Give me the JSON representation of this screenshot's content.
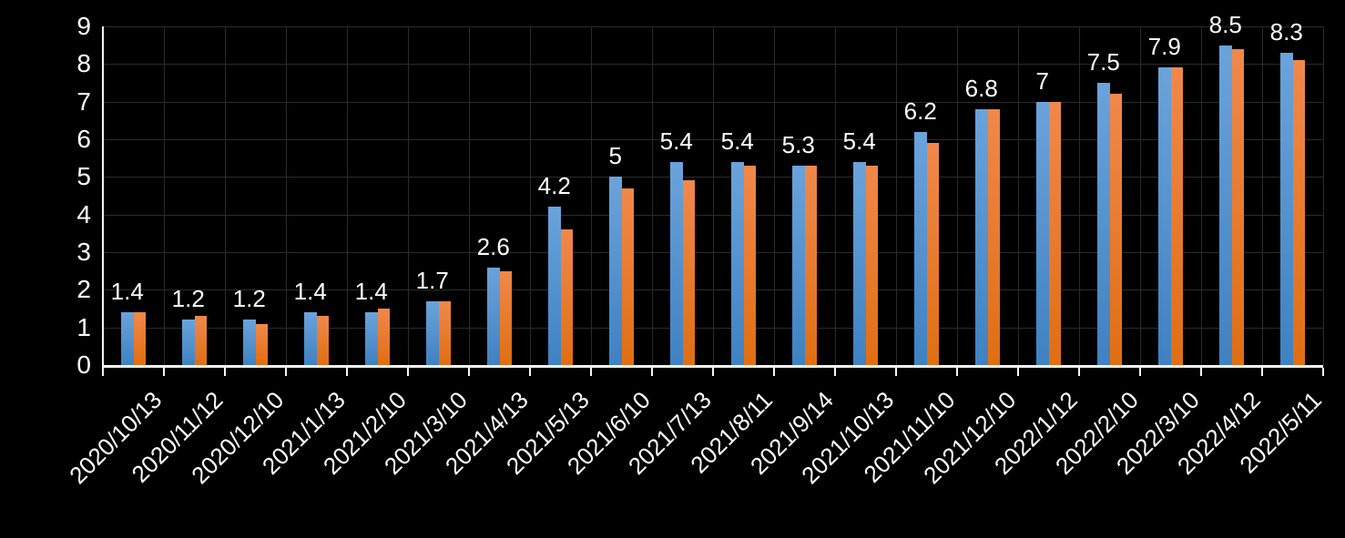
{
  "chart_data": {
    "type": "bar",
    "title": "",
    "legend": false,
    "grid": true,
    "background_color": "#000000",
    "gridline_color": "#2b2b2b",
    "axis_color": "#f5f5f5",
    "text_color": "#ffffff",
    "categories": [
      "2020/10/13",
      "2020/11/12",
      "2020/12/10",
      "2021/1/13",
      "2021/2/10",
      "2021/3/10",
      "2021/4/13",
      "2021/5/13",
      "2021/6/10",
      "2021/7/13",
      "2021/8/11",
      "2021/9/14",
      "2021/10/13",
      "2021/11/10",
      "2021/12/10",
      "2022/1/12",
      "2022/2/10",
      "2022/3/10",
      "2022/4/12",
      "2022/5/11"
    ],
    "series": [
      {
        "name": "series-1-blue",
        "color_top": "#6ba3db",
        "color_bottom": "#3f81c2",
        "values": [
          1.4,
          1.2,
          1.2,
          1.4,
          1.4,
          1.7,
          2.6,
          4.2,
          5,
          5.4,
          5.4,
          5.3,
          5.4,
          6.2,
          6.8,
          7,
          7.5,
          7.9,
          8.5,
          8.3
        ],
        "data_labels": [
          "1.4",
          "1.2",
          "1.2",
          "1.4",
          "1.4",
          "1.7",
          "2.6",
          "4.2",
          "5",
          "5.4",
          "5.4",
          "5.3",
          "5.4",
          "6.2",
          "6.8",
          "7",
          "7.5",
          "7.9",
          "8.5",
          "8.3"
        ]
      },
      {
        "name": "series-2-orange",
        "color_top": "#f0884b",
        "color_bottom": "#e06e12",
        "values": [
          1.4,
          1.3,
          1.1,
          1.3,
          1.5,
          1.7,
          2.5,
          3.6,
          4.7,
          4.9,
          5.3,
          5.3,
          5.3,
          5.9,
          6.8,
          7,
          7.2,
          7.9,
          8.4,
          8.1
        ],
        "data_labels": []
      }
    ],
    "y_axis": {
      "min": 0,
      "max": 9,
      "step": 1,
      "tick_labels": [
        "0",
        "1",
        "2",
        "3",
        "4",
        "5",
        "6",
        "7",
        "8",
        "9"
      ]
    },
    "x_axis": {
      "label_rotation_deg": -45
    }
  }
}
